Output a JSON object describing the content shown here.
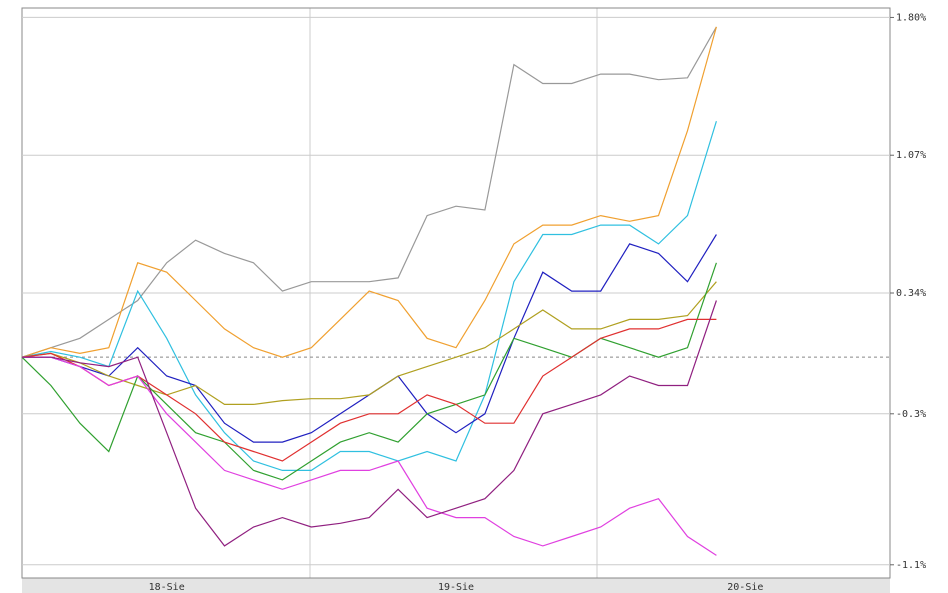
{
  "chart_data": {
    "type": "line",
    "categories": [
      null,
      null,
      null,
      null,
      null,
      "18-Sie",
      null,
      null,
      null,
      null,
      null,
      null,
      null,
      null,
      null,
      "19-Sie",
      null,
      null,
      null,
      null,
      null,
      null,
      null,
      null,
      null,
      "20-Sie",
      null,
      null,
      null,
      null
    ],
    "ylim": [
      -1.17,
      1.85
    ],
    "yticks": [
      {
        "value": 1.8,
        "label": "1.80%"
      },
      {
        "value": 1.07,
        "label": "1.07%"
      },
      {
        "value": 0.34,
        "label": "0.34%"
      },
      {
        "value": -0.3,
        "label": "-0.3%"
      },
      {
        "value": -1.1,
        "label": "-1.1%"
      }
    ],
    "grid": true,
    "reference_line": 0,
    "series": [
      {
        "color": "#999999",
        "values": [
          0,
          0.05,
          0.1,
          0.2,
          0.3,
          0.5,
          0.62,
          0.55,
          0.5,
          0.35,
          0.4,
          0.4,
          0.4,
          0.42,
          0.75,
          0.8,
          0.78,
          1.55,
          1.45,
          1.45,
          1.5,
          1.5,
          1.47,
          1.48,
          1.75,
          null,
          null,
          null,
          null,
          null
        ]
      },
      {
        "color": "#f0a030",
        "values": [
          0,
          0.05,
          0.02,
          0.05,
          0.5,
          0.45,
          0.3,
          0.15,
          0.05,
          0,
          0.05,
          0.2,
          0.35,
          0.3,
          0.1,
          0.05,
          0.3,
          0.6,
          0.7,
          0.7,
          0.75,
          0.72,
          0.75,
          1.2,
          1.75,
          null,
          null,
          null,
          null,
          null
        ]
      },
      {
        "color": "#30c0e0",
        "values": [
          0,
          0.03,
          0,
          -0.05,
          0.35,
          0.1,
          -0.2,
          -0.4,
          -0.55,
          -0.6,
          -0.6,
          -0.5,
          -0.5,
          -0.55,
          -0.5,
          -0.55,
          -0.2,
          0.4,
          0.65,
          0.65,
          0.7,
          0.7,
          0.6,
          0.75,
          1.25,
          null,
          null,
          null,
          null,
          null
        ]
      },
      {
        "color": "#2020c0",
        "values": [
          0,
          0,
          -0.05,
          -0.1,
          0.05,
          -0.1,
          -0.15,
          -0.35,
          -0.45,
          -0.45,
          -0.4,
          -0.3,
          -0.2,
          -0.1,
          -0.3,
          -0.4,
          -0.3,
          0.1,
          0.45,
          0.35,
          0.35,
          0.6,
          0.55,
          0.4,
          0.65,
          null,
          null,
          null,
          null,
          null
        ]
      },
      {
        "color": "#b0a020",
        "values": [
          0,
          0.02,
          -0.03,
          -0.1,
          -0.15,
          -0.2,
          -0.15,
          -0.25,
          -0.25,
          -0.23,
          -0.22,
          -0.22,
          -0.2,
          -0.1,
          -0.05,
          0,
          0.05,
          0.15,
          0.25,
          0.15,
          0.15,
          0.2,
          0.2,
          0.22,
          0.4,
          null,
          null,
          null,
          null,
          null
        ]
      },
      {
        "color": "#30a030",
        "values": [
          0,
          -0.15,
          -0.35,
          -0.5,
          -0.1,
          -0.25,
          -0.4,
          -0.45,
          -0.6,
          -0.65,
          -0.55,
          -0.45,
          -0.4,
          -0.45,
          -0.3,
          -0.25,
          -0.2,
          0.1,
          0.05,
          0,
          0.1,
          0.05,
          0,
          0.05,
          0.5,
          null,
          null,
          null,
          null,
          null
        ]
      },
      {
        "color": "#e03030",
        "values": [
          0,
          0.02,
          -0.05,
          -0.15,
          -0.1,
          -0.2,
          -0.3,
          -0.45,
          -0.5,
          -0.55,
          -0.45,
          -0.35,
          -0.3,
          -0.3,
          -0.2,
          -0.25,
          -0.35,
          -0.35,
          -0.1,
          0,
          0.1,
          0.15,
          0.15,
          0.2,
          0.2,
          null,
          null,
          null,
          null,
          null
        ]
      },
      {
        "color": "#e040e0",
        "values": [
          0,
          0,
          -0.05,
          -0.15,
          -0.1,
          -0.3,
          -0.45,
          -0.6,
          -0.65,
          -0.7,
          -0.65,
          -0.6,
          -0.6,
          -0.55,
          -0.8,
          -0.85,
          -0.85,
          -0.95,
          -1.0,
          -0.95,
          -0.9,
          -0.8,
          -0.75,
          -0.95,
          -1.05,
          null,
          null,
          null,
          null,
          null
        ]
      },
      {
        "color": "#902080",
        "values": [
          0,
          0,
          -0.03,
          -0.05,
          0,
          -0.4,
          -0.8,
          -1.0,
          -0.9,
          -0.85,
          -0.9,
          -0.88,
          -0.85,
          -0.7,
          -0.85,
          -0.8,
          -0.75,
          -0.6,
          -0.3,
          -0.25,
          -0.2,
          -0.1,
          -0.15,
          -0.15,
          0.3,
          null,
          null,
          null,
          null,
          null
        ]
      }
    ]
  }
}
